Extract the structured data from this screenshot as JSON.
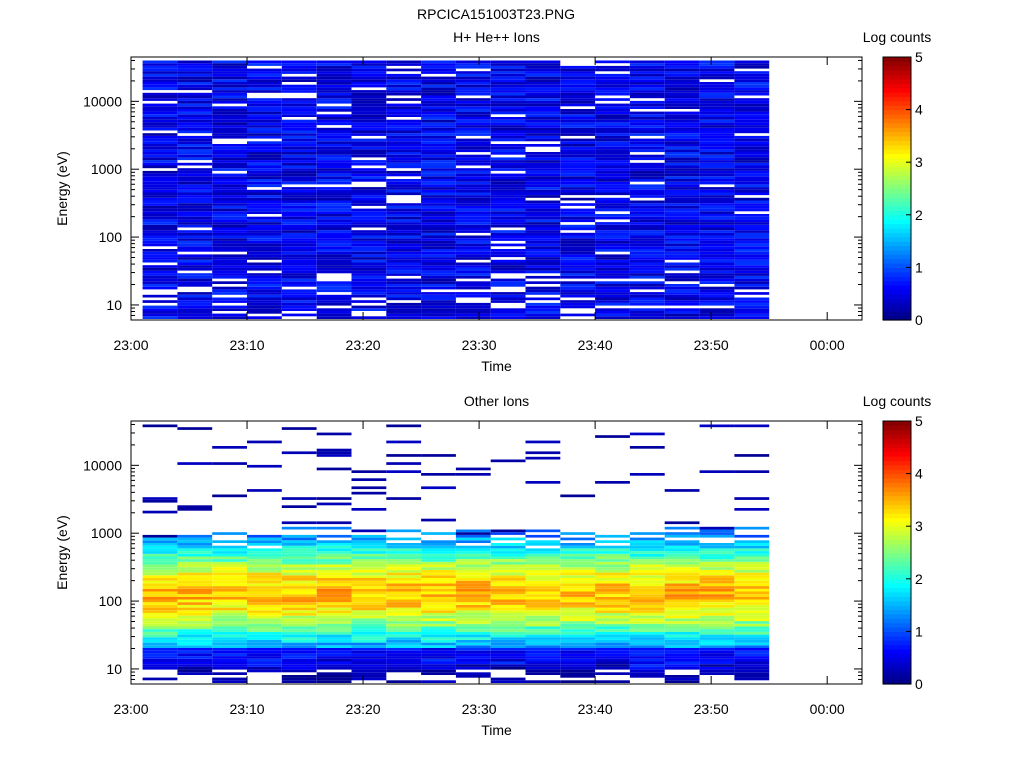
{
  "figure_title": "RPCICA151003T23.PNG",
  "chart_data": [
    {
      "type": "heatmap",
      "title": "H+ He++ Ions",
      "xlabel": "Time",
      "ylabel": "Energy (eV)",
      "colorbar_label": "Log counts",
      "x_ticks": [
        "23:00",
        "23:10",
        "23:20",
        "23:30",
        "23:40",
        "23:50",
        "00:00"
      ],
      "y_ticks": [
        "10",
        "100",
        "1000",
        "10000"
      ],
      "colorbar_ticks": [
        "0",
        "1",
        "2",
        "3",
        "4",
        "5"
      ],
      "xlim": [
        "23:00",
        "00:03"
      ],
      "ylim": [
        6,
        45000
      ],
      "zlim": [
        0,
        5
      ],
      "y_scale": "log",
      "colormap": "jet",
      "time_columns": [
        "23:01",
        "23:04",
        "23:07",
        "23:10",
        "23:13",
        "23:16",
        "23:19",
        "23:22",
        "23:25",
        "23:28",
        "23:31",
        "23:34",
        "23:37",
        "23:40",
        "23:43",
        "23:46",
        "23:49",
        "23:52"
      ],
      "energy_range_eV": [
        6.2,
        40000
      ],
      "energy_bins": 96,
      "typical_log_counts": [
        0.2,
        0.9
      ],
      "gaps": "scattered empty bins at all energies"
    },
    {
      "type": "heatmap",
      "title": "Other Ions",
      "xlabel": "Time",
      "ylabel": "Energy (eV)",
      "colorbar_label": "Log counts",
      "x_ticks": [
        "23:00",
        "23:10",
        "23:20",
        "23:30",
        "23:40",
        "23:50",
        "00:00"
      ],
      "y_ticks": [
        "10",
        "100",
        "1000",
        "10000"
      ],
      "colorbar_ticks": [
        "0",
        "1",
        "2",
        "3",
        "4",
        "5"
      ],
      "xlim": [
        "23:00",
        "00:03"
      ],
      "ylim": [
        6,
        45000
      ],
      "zlim": [
        0,
        5
      ],
      "y_scale": "log",
      "colormap": "jet",
      "time_columns": [
        "23:01",
        "23:04",
        "23:07",
        "23:10",
        "23:13",
        "23:16",
        "23:19",
        "23:22",
        "23:25",
        "23:28",
        "23:31",
        "23:34",
        "23:37",
        "23:40",
        "23:43",
        "23:46",
        "23:49",
        "23:52"
      ],
      "energy_range_eV": [
        6.2,
        40000
      ],
      "energy_bins": 96,
      "band_peak_energy_eV": 130,
      "band_peak_log_counts": 3.0,
      "band_energy_range_eV": [
        10,
        900
      ],
      "sparse_high_energy_lines": "isolated single-bin traces up to 40000 eV"
    }
  ]
}
